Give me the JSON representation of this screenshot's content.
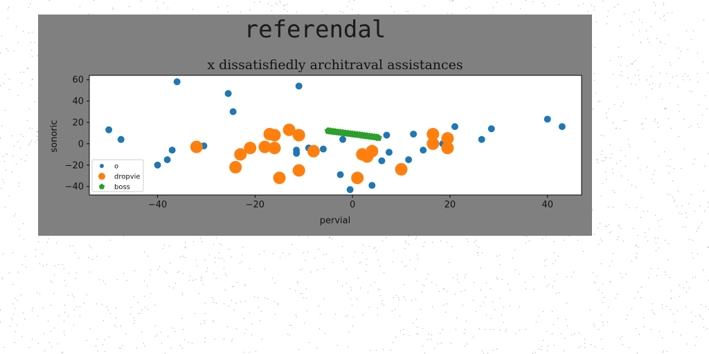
{
  "suptitle": "referendal",
  "chart_data": {
    "type": "scatter",
    "title": "x dissatisfiedly architraval assistances",
    "xlabel": "pervial",
    "ylabel": "sonoric",
    "xlim": [
      -54,
      47
    ],
    "ylim": [
      -48,
      64
    ],
    "xticks": [
      -40,
      -20,
      0,
      20,
      40
    ],
    "yticks": [
      -40,
      -20,
      0,
      20,
      40,
      60
    ],
    "grid": false,
    "legend_position": "lower-left",
    "series": [
      {
        "name": "o",
        "color": "#1f77b4",
        "marker": "circle",
        "size": "small",
        "points": [
          [
            -50,
            13
          ],
          [
            -47.5,
            4
          ],
          [
            -36,
            58
          ],
          [
            -25.5,
            47
          ],
          [
            -24.5,
            30
          ],
          [
            -11,
            54
          ],
          [
            -40,
            -20
          ],
          [
            -38,
            -15
          ],
          [
            -37,
            -6
          ],
          [
            -30.5,
            -2
          ],
          [
            -11.5,
            -6
          ],
          [
            -11.5,
            -9
          ],
          [
            -9,
            -4
          ],
          [
            -6,
            -5
          ],
          [
            -2,
            4
          ],
          [
            -2.5,
            -29
          ],
          [
            -0.5,
            -43
          ],
          [
            4,
            -39
          ],
          [
            6,
            -16
          ],
          [
            7,
            8
          ],
          [
            7.5,
            -8
          ],
          [
            11.5,
            -15
          ],
          [
            12.5,
            9
          ],
          [
            14.5,
            -6
          ],
          [
            18.5,
            0
          ],
          [
            21,
            16
          ],
          [
            26.5,
            4
          ],
          [
            28.5,
            14
          ],
          [
            40,
            23
          ],
          [
            43,
            16
          ]
        ]
      },
      {
        "name": "dropvie",
        "color": "#ff7f0e",
        "marker": "circle",
        "size": "large",
        "points": [
          [
            -32,
            -3
          ],
          [
            -24,
            -22
          ],
          [
            -23,
            -10
          ],
          [
            -21,
            -4
          ],
          [
            -18,
            -3
          ],
          [
            -17,
            9
          ],
          [
            -16,
            8
          ],
          [
            -16,
            -4
          ],
          [
            -15,
            -32
          ],
          [
            -13,
            13
          ],
          [
            -11,
            8
          ],
          [
            -11,
            -25
          ],
          [
            -8,
            -7
          ],
          [
            1,
            -32
          ],
          [
            2,
            -10
          ],
          [
            3,
            -12
          ],
          [
            4,
            -7
          ],
          [
            10,
            -24
          ],
          [
            16.5,
            9
          ],
          [
            16.5,
            0
          ],
          [
            19.5,
            5
          ],
          [
            19.5,
            -4
          ]
        ]
      },
      {
        "name": "boss",
        "color": "#2ca02c",
        "marker": "pentagon",
        "size": "small",
        "points": [
          [
            -5,
            12
          ],
          [
            -4,
            11.4
          ],
          [
            -3,
            10.8
          ],
          [
            -2,
            10.2
          ],
          [
            -1,
            9.6
          ],
          [
            0,
            9
          ],
          [
            1,
            8.4
          ],
          [
            2,
            7.8
          ],
          [
            3,
            7.2
          ],
          [
            4,
            6.6
          ],
          [
            5,
            6
          ],
          [
            -4.5,
            11.7
          ],
          [
            -3.5,
            11.1
          ],
          [
            -2.5,
            10.5
          ],
          [
            -1.5,
            9.9
          ],
          [
            -0.5,
            9.3
          ],
          [
            0.5,
            8.7
          ],
          [
            1.5,
            8.1
          ],
          [
            2.5,
            7.5
          ],
          [
            3.5,
            6.9
          ],
          [
            4.5,
            6.3
          ],
          [
            5.3,
            5.5
          ]
        ]
      }
    ]
  }
}
